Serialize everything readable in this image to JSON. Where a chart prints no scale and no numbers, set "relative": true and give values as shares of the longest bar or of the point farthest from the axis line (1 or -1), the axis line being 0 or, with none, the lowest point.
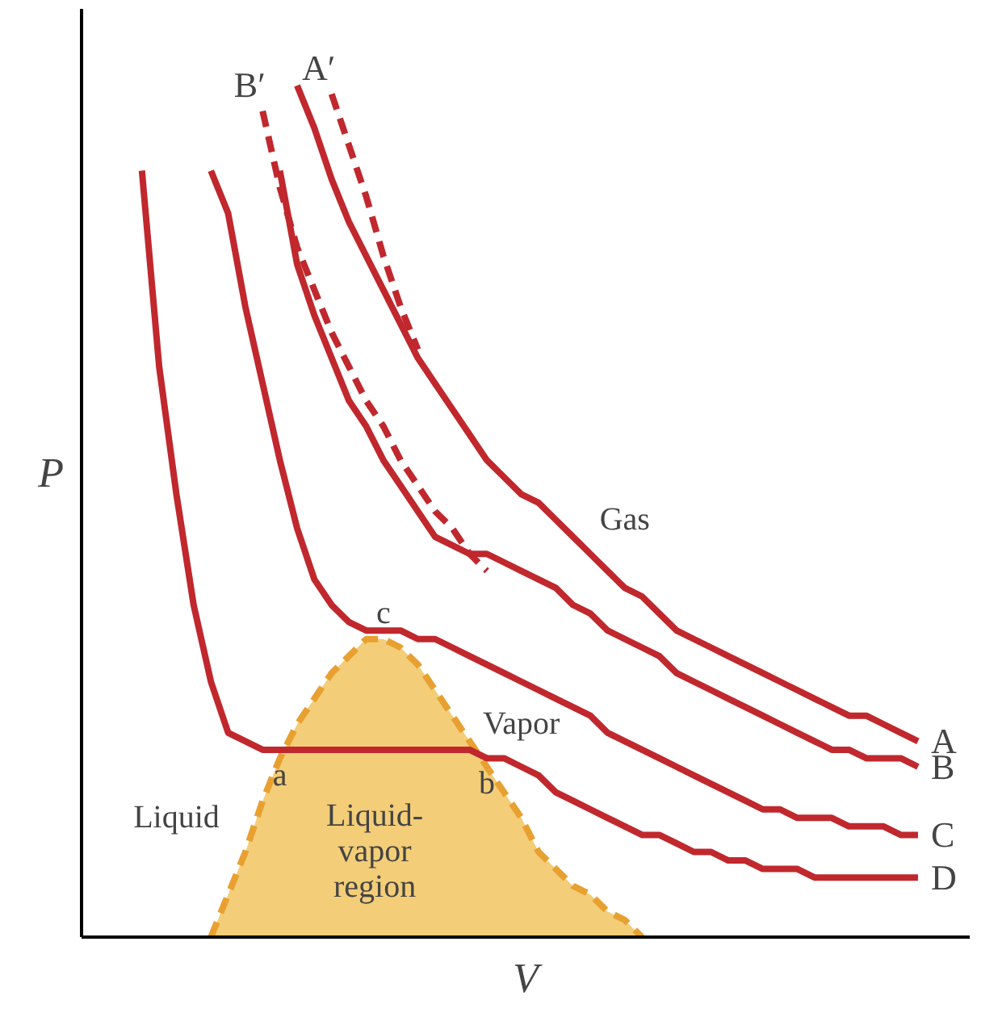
{
  "chart_data": {
    "type": "line",
    "relative": true,
    "xlabel": "V",
    "ylabel": "P",
    "grid": false,
    "legend": false,
    "marker": "none",
    "categories": [
      null,
      null,
      null,
      null,
      null,
      null,
      null,
      null,
      null,
      null,
      null,
      null,
      null,
      null,
      null,
      null,
      null,
      null,
      null,
      null,
      null,
      null,
      null,
      null,
      null,
      null,
      null,
      null,
      null,
      null,
      null,
      null,
      null,
      null,
      null,
      null,
      null,
      null,
      null,
      null,
      null,
      null,
      null,
      null,
      null,
      null,
      null
    ],
    "series": [
      {
        "name": "A",
        "color": "#c0282d",
        "line_style": "solid",
        "values": [
          null,
          null,
          null,
          null,
          null,
          null,
          null,
          null,
          null,
          null,
          1.0,
          0.95,
          0.89,
          0.84,
          0.8,
          0.76,
          0.72,
          0.68,
          0.65,
          0.62,
          0.59,
          0.56,
          0.54,
          0.52,
          0.51,
          0.49,
          0.47,
          0.45,
          0.43,
          0.41,
          0.4,
          0.38,
          0.36,
          0.35,
          0.34,
          0.33,
          0.32,
          0.31,
          0.3,
          0.29,
          0.28,
          0.27,
          0.26,
          0.26,
          0.25,
          0.24,
          0.23
        ]
      },
      {
        "name": "B",
        "color": "#c0282d",
        "line_style": "solid",
        "values": [
          null,
          null,
          null,
          null,
          null,
          null,
          null,
          null,
          null,
          0.9,
          0.79,
          0.73,
          0.68,
          0.63,
          0.6,
          0.56,
          0.53,
          0.5,
          0.47,
          0.46,
          0.45,
          0.45,
          0.44,
          0.43,
          0.42,
          0.41,
          0.39,
          0.38,
          0.36,
          0.35,
          0.34,
          0.33,
          0.31,
          0.3,
          0.29,
          0.28,
          0.27,
          0.26,
          0.25,
          0.24,
          0.23,
          0.22,
          0.22,
          0.21,
          0.21,
          0.21,
          0.2
        ]
      },
      {
        "name": "C",
        "color": "#c0282d",
        "line_style": "solid",
        "values": [
          null,
          null,
          null,
          null,
          null,
          0.9,
          0.85,
          0.74,
          0.65,
          0.56,
          0.48,
          0.42,
          0.39,
          0.37,
          0.36,
          0.36,
          0.36,
          0.35,
          0.35,
          0.34,
          0.33,
          0.32,
          0.31,
          0.3,
          0.29,
          0.28,
          0.27,
          0.26,
          0.24,
          0.23,
          0.22,
          0.21,
          0.2,
          0.19,
          0.18,
          0.17,
          0.16,
          0.15,
          0.15,
          0.14,
          0.14,
          0.14,
          0.13,
          0.13,
          0.13,
          0.12,
          0.12
        ]
      },
      {
        "name": "D",
        "color": "#c0282d",
        "line_style": "solid",
        "values": [
          null,
          0.9,
          0.67,
          0.52,
          0.39,
          0.3,
          0.24,
          0.23,
          0.22,
          0.22,
          0.22,
          0.22,
          0.22,
          0.22,
          0.22,
          0.22,
          0.22,
          0.22,
          0.22,
          0.22,
          0.22,
          0.21,
          0.21,
          0.2,
          0.19,
          0.17,
          0.16,
          0.15,
          0.14,
          0.13,
          0.12,
          0.12,
          0.11,
          0.1,
          0.1,
          0.09,
          0.09,
          0.08,
          0.08,
          0.08,
          0.07,
          0.07,
          0.07,
          0.07,
          0.07,
          0.07,
          0.07
        ]
      },
      {
        "name": "B′",
        "color": "#c0282d",
        "line_style": "dashed",
        "values": [
          null,
          null,
          null,
          null,
          null,
          null,
          null,
          null,
          0.97,
          0.88,
          0.81,
          0.76,
          0.71,
          0.67,
          0.63,
          0.6,
          0.56,
          0.53,
          0.5,
          0.48,
          0.45,
          0.43,
          null,
          null,
          null,
          null,
          null,
          null,
          null,
          null,
          null,
          null,
          null,
          null,
          null,
          null,
          null,
          null,
          null,
          null,
          null,
          null,
          null,
          null,
          null,
          null,
          null
        ]
      },
      {
        "name": "A′",
        "color": "#c0282d",
        "line_style": "dashed",
        "values": [
          null,
          null,
          null,
          null,
          null,
          null,
          null,
          null,
          null,
          null,
          null,
          null,
          0.99,
          0.93,
          0.87,
          0.8,
          0.74,
          0.69,
          null,
          null,
          null,
          null,
          null,
          null,
          null,
          null,
          null,
          null,
          null,
          null,
          null,
          null,
          null,
          null,
          null,
          null,
          null,
          null,
          null,
          null,
          null,
          null,
          null,
          null,
          null,
          null,
          null
        ]
      },
      {
        "type": "area",
        "color": "#f3cd78",
        "line_style": "dashed",
        "values": [
          null,
          null,
          null,
          null,
          null,
          0,
          0.05,
          0.1,
          0.16,
          0.21,
          0.25,
          0.28,
          0.31,
          0.33,
          0.35,
          0.35,
          0.34,
          0.32,
          0.29,
          0.26,
          0.23,
          0.2,
          0.17,
          0.14,
          0.1,
          0.08,
          0.06,
          0.05,
          0.03,
          0.02,
          0,
          null,
          null,
          null,
          null,
          null,
          null,
          null,
          null,
          null,
          null,
          null,
          null,
          null,
          null,
          null,
          null
        ]
      }
    ],
    "annotations": [
      "a",
      "b",
      "c",
      "Gas",
      "Vapor",
      "Liquid",
      "Liquid-\nvapor\nregion"
    ]
  }
}
